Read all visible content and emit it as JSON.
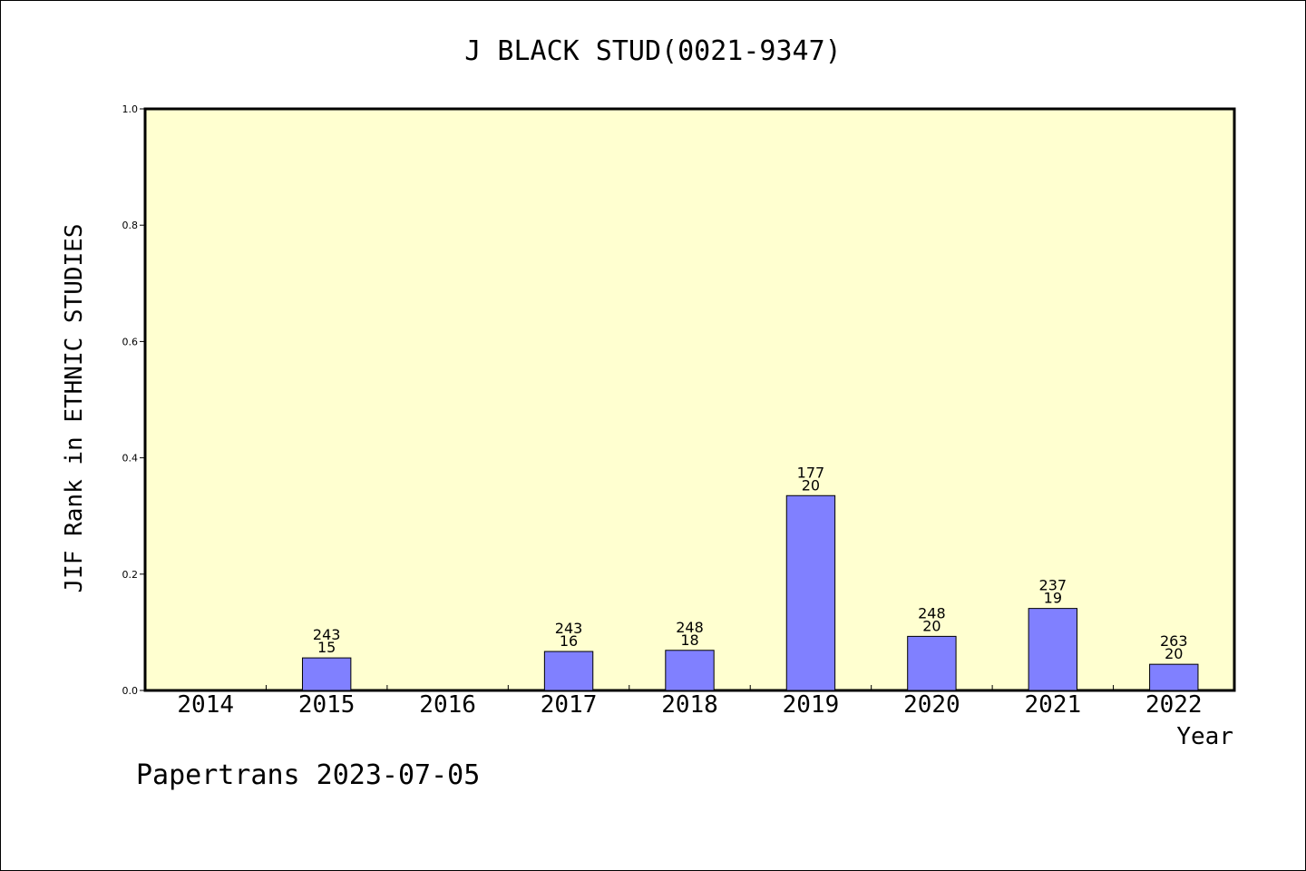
{
  "chart_data": {
    "type": "bar",
    "title": "J BLACK STUD(0021-9347)",
    "xlabel": "Year",
    "ylabel": "JIF Rank in ETHNIC STUDIES",
    "ylim": [
      0,
      1.0
    ],
    "yticks": [
      "0.0",
      "0.2",
      "0.4",
      "0.6",
      "0.8",
      "1.0"
    ],
    "grid": false,
    "legend": "none",
    "categories": [
      "2014",
      "2015",
      "2016",
      "2017",
      "2018",
      "2019",
      "2020",
      "2021",
      "2022"
    ],
    "values": [
      null,
      0.056,
      null,
      0.067,
      0.069,
      0.335,
      0.093,
      0.141,
      0.045
    ],
    "labels": [
      null,
      [
        "243",
        "15"
      ],
      null,
      [
        "243",
        "16"
      ],
      [
        "248",
        "18"
      ],
      [
        "177",
        "20"
      ],
      [
        "248",
        "20"
      ],
      [
        "237",
        "19"
      ],
      [
        "263",
        "20"
      ]
    ],
    "colors": {
      "plot_bg": "#ffffd0",
      "bar": "#8080ff",
      "bar_edge": "#000000"
    }
  },
  "footer": {
    "credit": "Papertrans 2023-07-05"
  }
}
